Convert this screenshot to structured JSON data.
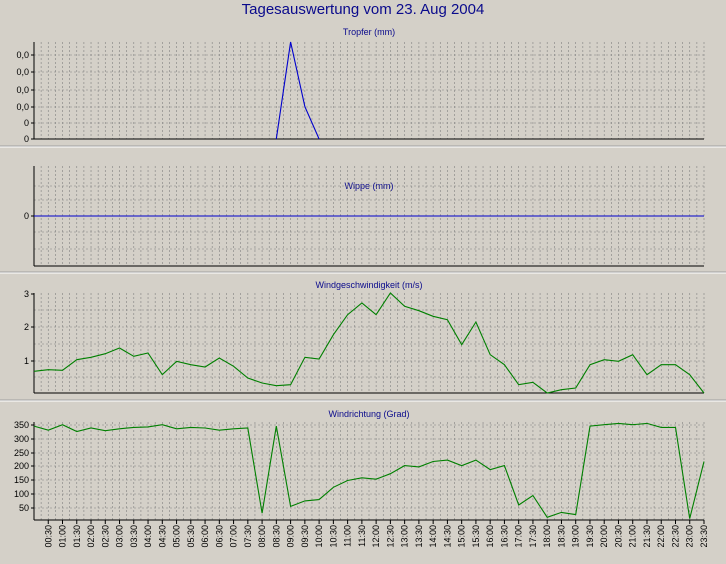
{
  "window": {
    "title": "Tagesauswertung vom 23. Aug 2004"
  },
  "colors": {
    "background": "#d4d0c8",
    "title": "#0a0a8c",
    "rain": "#0000cc",
    "wind": "#008000",
    "grid": "#808080"
  },
  "time_labels": [
    "00:30",
    "01:00",
    "01:30",
    "02:00",
    "02:30",
    "03:00",
    "03:30",
    "04:00",
    "04:30",
    "05:00",
    "05:30",
    "06:00",
    "06:30",
    "07:00",
    "07:30",
    "08:00",
    "08:30",
    "09:00",
    "09:30",
    "10:00",
    "10:30",
    "11:00",
    "11:30",
    "12:00",
    "12:30",
    "13:00",
    "13:30",
    "14:00",
    "14:30",
    "15:00",
    "15:30",
    "16:00",
    "16:30",
    "17:00",
    "17:30",
    "18:00",
    "18:30",
    "19:00",
    "19:30",
    "20:00",
    "20:30",
    "21:00",
    "21:30",
    "22:00",
    "22:30",
    "23:00",
    "23:30"
  ],
  "chart_data": [
    {
      "type": "line",
      "title": "Tropfer (mm)",
      "ytick_labels": [
        "0,0",
        "0,0",
        "0,0",
        "0,0",
        "0",
        "0"
      ],
      "ylim": [
        0,
        6
      ],
      "grid": true,
      "series": [
        {
          "color": "#0000cc",
          "x": [
            "08:30",
            "09:00",
            "09:30",
            "10:00"
          ],
          "y": [
            0,
            6,
            2,
            0
          ]
        }
      ]
    },
    {
      "type": "line",
      "title": "Wippe (mm)",
      "ytick_labels": [
        "0"
      ],
      "ylim": [
        -1,
        1
      ],
      "grid": true,
      "series": [
        {
          "color": "#0000cc",
          "x": [
            "00:00",
            "23:30"
          ],
          "y": [
            0,
            0
          ]
        }
      ]
    },
    {
      "type": "line",
      "title": "Windgeschwindigkeit (m/s)",
      "ytick_labels": [
        "1",
        "2",
        "3"
      ],
      "ylim": [
        0,
        3
      ],
      "grid": true,
      "series": [
        {
          "color": "#008000",
          "x": [
            "00:00",
            "00:30",
            "01:00",
            "01:30",
            "02:00",
            "02:30",
            "03:00",
            "03:30",
            "04:00",
            "04:30",
            "05:00",
            "05:30",
            "06:00",
            "06:30",
            "07:00",
            "07:30",
            "08:00",
            "08:30",
            "09:00",
            "09:30",
            "10:00",
            "10:30",
            "11:00",
            "11:30",
            "12:00",
            "12:30",
            "13:00",
            "13:30",
            "14:00",
            "14:30",
            "15:00",
            "15:30",
            "16:00",
            "16:30",
            "17:00",
            "17:30",
            "18:00",
            "18:30",
            "19:00",
            "19:30",
            "20:00",
            "20:30",
            "21:00",
            "21:30",
            "22:00",
            "22:30",
            "23:00",
            "23:30"
          ],
          "y": [
            0.65,
            0.7,
            0.68,
            1.0,
            1.07,
            1.18,
            1.35,
            1.1,
            1.2,
            0.55,
            0.95,
            0.85,
            0.78,
            1.05,
            0.8,
            0.45,
            0.3,
            0.22,
            0.25,
            1.07,
            1.02,
            1.75,
            2.35,
            2.7,
            2.35,
            3.0,
            2.6,
            2.47,
            2.3,
            2.2,
            1.45,
            2.13,
            1.15,
            0.85,
            0.25,
            0.32,
            0.0,
            0.1,
            0.15,
            0.85,
            1.0,
            0.95,
            1.15,
            0.55,
            0.85,
            0.85,
            0.55,
            0.0
          ]
        }
      ]
    },
    {
      "type": "line",
      "title": "Windrichtung (Grad)",
      "ytick_labels": [
        "50",
        "100",
        "150",
        "200",
        "250",
        "300",
        "350"
      ],
      "ylim": [
        0,
        360
      ],
      "grid": true,
      "series": [
        {
          "color": "#008000",
          "x": [
            "00:00",
            "00:30",
            "01:00",
            "01:30",
            "02:00",
            "02:30",
            "03:00",
            "03:30",
            "04:00",
            "04:30",
            "05:00",
            "05:30",
            "06:00",
            "06:30",
            "07:00",
            "07:30",
            "08:00",
            "08:30",
            "09:00",
            "09:30",
            "10:00",
            "10:30",
            "11:00",
            "11:30",
            "12:00",
            "12:30",
            "13:00",
            "13:30",
            "14:00",
            "14:30",
            "15:00",
            "15:30",
            "16:00",
            "16:30",
            "17:00",
            "17:30",
            "18:00",
            "18:30",
            "19:00",
            "19:30",
            "20:00",
            "20:30",
            "21:00",
            "21:30",
            "22:00",
            "22:30",
            "23:00",
            "23:30"
          ],
          "y": [
            345,
            330,
            350,
            325,
            338,
            328,
            335,
            340,
            342,
            350,
            335,
            340,
            338,
            330,
            335,
            338,
            25,
            345,
            50,
            70,
            75,
            120,
            145,
            155,
            150,
            170,
            200,
            195,
            215,
            220,
            200,
            220,
            185,
            200,
            55,
            90,
            10,
            28,
            20,
            345,
            350,
            355,
            350,
            355,
            340,
            340,
            5,
            215
          ]
        }
      ]
    }
  ]
}
